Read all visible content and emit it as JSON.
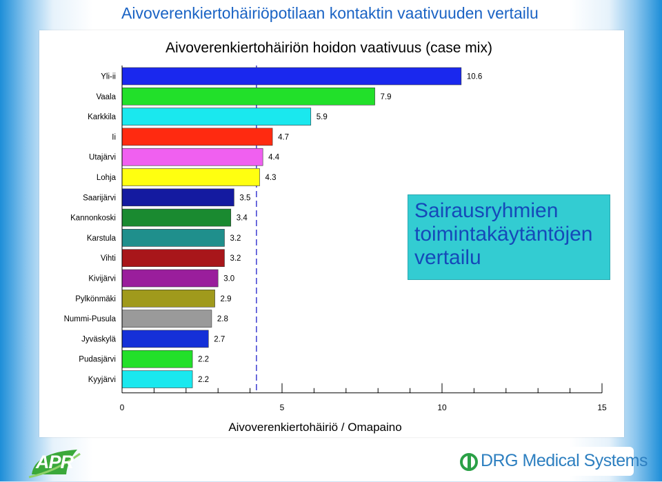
{
  "slide": {
    "title": "Aivoverenkiertohäiriöpotilaan kontaktin vaativuuden vertailu",
    "callout": "Sairausryhmien\ntoimintakäytäntöjen\nvertailu",
    "logo_left": "APR",
    "logo_right": "DRG Medical Systems"
  },
  "chart_data": {
    "type": "bar",
    "orientation": "horizontal",
    "title": "Aivoverenkiertohäiriön hoidon vaativuus (case mix)",
    "xlabel": "Aivoverenkiertohäiriö / Omapaino",
    "ylabel": "",
    "xlim": [
      0,
      15
    ],
    "xticks": [
      0,
      5,
      10,
      15
    ],
    "reference_line": 4.2,
    "categories": [
      "Yli-ii",
      "Vaala",
      "Karkkila",
      "Ii",
      "Utajärvi",
      "Lohja",
      "Saarijärvi",
      "Kannonkoski",
      "Karstula",
      "Vihti",
      "Kivijärvi",
      "Pylkönmäki",
      "Nummi-Pusula",
      "Jyväskylä",
      "Pudasjärvi",
      "Kyyjärvi"
    ],
    "values": [
      10.6,
      7.9,
      5.9,
      4.7,
      4.4,
      4.3,
      3.5,
      3.4,
      3.2,
      3.2,
      3.0,
      2.9,
      2.8,
      2.7,
      2.2,
      2.2
    ],
    "value_labels": [
      "10.6",
      "7.9",
      "5.9",
      "4.7",
      "4.4",
      "4.3",
      "3.5",
      "3.4",
      "3.2",
      "3.2",
      "3.0",
      "2.9",
      "2.8",
      "2.7",
      "2.2",
      "2.2"
    ],
    "colors": [
      "#1a28ee",
      "#22e02a",
      "#1ae8ee",
      "#ff2a10",
      "#f060f0",
      "#ffff10",
      "#141aa0",
      "#1a8a30",
      "#1f8f8c",
      "#a8161a",
      "#9a1e9c",
      "#a09a1c",
      "#9a9a9a",
      "#1530d8",
      "#22e02a",
      "#1ae8ee"
    ],
    "grid": false,
    "legend": "none"
  }
}
